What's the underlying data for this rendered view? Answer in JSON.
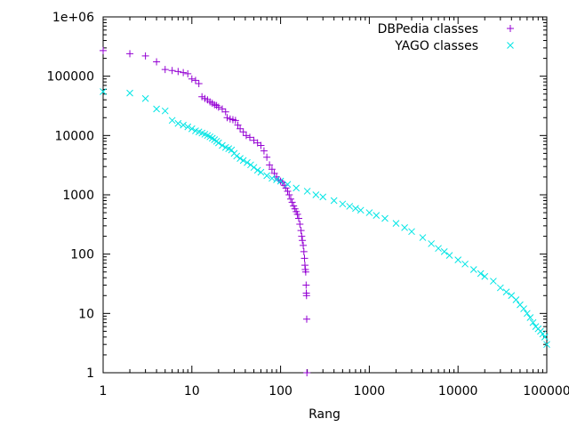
{
  "chart_data": {
    "type": "scatter",
    "xlabel": "Rang",
    "ylabel": "",
    "xscale": "log",
    "yscale": "log",
    "xlim": [
      1,
      100000
    ],
    "ylim": [
      1,
      1000000
    ],
    "grid": false,
    "legend_position": "top-right",
    "x_tick_labels": [
      "1",
      "10",
      "100",
      "1000",
      "10000",
      "100000"
    ],
    "x_tick_values": [
      1,
      10,
      100,
      1000,
      10000,
      100000
    ],
    "y_tick_labels": [
      "1",
      "10",
      "100",
      "1000",
      "10000",
      "100000",
      "1e+06"
    ],
    "y_tick_values": [
      1,
      10,
      100,
      1000,
      10000,
      100000,
      1000000
    ],
    "series": [
      {
        "name": "DBPedia classes",
        "marker": "plus",
        "color": "#9400d3",
        "points": [
          [
            1,
            270000
          ],
          [
            2,
            240000
          ],
          [
            3,
            220000
          ],
          [
            4,
            175000
          ],
          [
            5,
            130000
          ],
          [
            6,
            125000
          ],
          [
            7,
            120000
          ],
          [
            8,
            115000
          ],
          [
            9,
            110000
          ],
          [
            10,
            90000
          ],
          [
            11,
            85000
          ],
          [
            12,
            75000
          ],
          [
            13,
            45000
          ],
          [
            14,
            42000
          ],
          [
            15,
            40000
          ],
          [
            16,
            37000
          ],
          [
            17,
            35000
          ],
          [
            18,
            33000
          ],
          [
            19,
            32000
          ],
          [
            20,
            30000
          ],
          [
            22,
            28000
          ],
          [
            24,
            25000
          ],
          [
            25,
            20000
          ],
          [
            27,
            19000
          ],
          [
            29,
            18500
          ],
          [
            31,
            18000
          ],
          [
            33,
            15000
          ],
          [
            35,
            13000
          ],
          [
            38,
            11500
          ],
          [
            41,
            10000
          ],
          [
            45,
            9300
          ],
          [
            50,
            8300
          ],
          [
            55,
            7500
          ],
          [
            60,
            6800
          ],
          [
            65,
            5500
          ],
          [
            70,
            4300
          ],
          [
            75,
            3200
          ],
          [
            80,
            2700
          ],
          [
            85,
            2300
          ],
          [
            90,
            2000
          ],
          [
            95,
            1800
          ],
          [
            100,
            1700
          ],
          [
            105,
            1600
          ],
          [
            110,
            1450
          ],
          [
            115,
            1300
          ],
          [
            120,
            1150
          ],
          [
            125,
            1000
          ],
          [
            130,
            850
          ],
          [
            135,
            750
          ],
          [
            140,
            650
          ],
          [
            145,
            580
          ],
          [
            150,
            520
          ],
          [
            155,
            470
          ],
          [
            160,
            400
          ],
          [
            165,
            320
          ],
          [
            170,
            250
          ],
          [
            173,
            200
          ],
          [
            176,
            170
          ],
          [
            180,
            140
          ],
          [
            183,
            110
          ],
          [
            186,
            85
          ],
          [
            188,
            65
          ],
          [
            190,
            55
          ],
          [
            192,
            50
          ],
          [
            194,
            30
          ],
          [
            195,
            22
          ],
          [
            196,
            20
          ],
          [
            197,
            8
          ],
          [
            198,
            1
          ]
        ]
      },
      {
        "name": "YAGO classes",
        "marker": "cross",
        "color": "#00e5e5",
        "points": [
          [
            1,
            55000
          ],
          [
            2,
            52000
          ],
          [
            3,
            42000
          ],
          [
            4,
            28000
          ],
          [
            5,
            26000
          ],
          [
            6,
            18000
          ],
          [
            7,
            16000
          ],
          [
            8,
            15000
          ],
          [
            9,
            14000
          ],
          [
            10,
            13000
          ],
          [
            11,
            12000
          ],
          [
            12,
            11500
          ],
          [
            13,
            11000
          ],
          [
            14,
            10500
          ],
          [
            15,
            10000
          ],
          [
            16,
            9500
          ],
          [
            17,
            9000
          ],
          [
            18,
            8500
          ],
          [
            19,
            8000
          ],
          [
            20,
            7500
          ],
          [
            22,
            6800
          ],
          [
            24,
            6300
          ],
          [
            26,
            6000
          ],
          [
            28,
            5700
          ],
          [
            30,
            5000
          ],
          [
            32,
            4500
          ],
          [
            35,
            4100
          ],
          [
            38,
            3800
          ],
          [
            42,
            3500
          ],
          [
            46,
            3200
          ],
          [
            50,
            2900
          ],
          [
            55,
            2600
          ],
          [
            60,
            2400
          ],
          [
            70,
            2100
          ],
          [
            80,
            1900
          ],
          [
            90,
            1800
          ],
          [
            100,
            1700
          ],
          [
            120,
            1500
          ],
          [
            150,
            1300
          ],
          [
            200,
            1150
          ],
          [
            250,
            1000
          ],
          [
            300,
            920
          ],
          [
            400,
            800
          ],
          [
            500,
            700
          ],
          [
            600,
            640
          ],
          [
            700,
            590
          ],
          [
            800,
            550
          ],
          [
            1000,
            500
          ],
          [
            1200,
            450
          ],
          [
            1500,
            400
          ],
          [
            2000,
            330
          ],
          [
            2500,
            280
          ],
          [
            3000,
            240
          ],
          [
            4000,
            190
          ],
          [
            5000,
            150
          ],
          [
            6000,
            125
          ],
          [
            7000,
            110
          ],
          [
            8000,
            95
          ],
          [
            10000,
            80
          ],
          [
            12000,
            68
          ],
          [
            15000,
            55
          ],
          [
            18000,
            47
          ],
          [
            20000,
            42
          ],
          [
            25000,
            35
          ],
          [
            30000,
            27
          ],
          [
            35000,
            23
          ],
          [
            40000,
            20
          ],
          [
            45000,
            17
          ],
          [
            50000,
            14
          ],
          [
            55000,
            12
          ],
          [
            60000,
            10
          ],
          [
            65000,
            8.5
          ],
          [
            70000,
            7
          ],
          [
            75000,
            6
          ],
          [
            80000,
            5.5
          ],
          [
            85000,
            5
          ],
          [
            90000,
            4.5
          ],
          [
            95000,
            4
          ],
          [
            100000,
            3
          ]
        ]
      }
    ]
  }
}
